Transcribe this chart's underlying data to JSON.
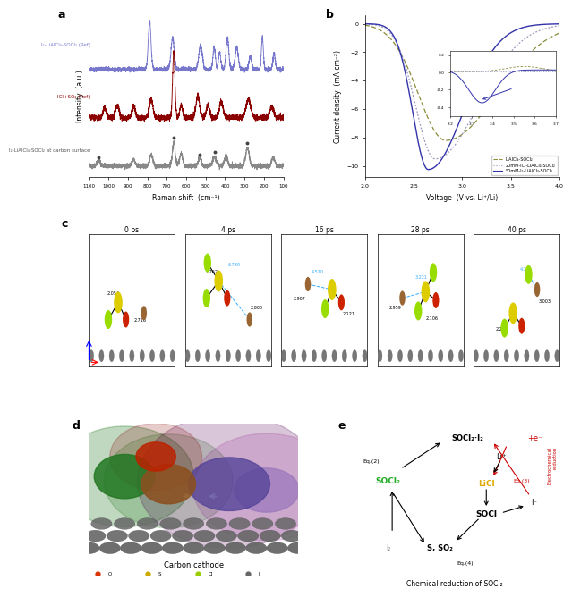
{
  "panel_a": {
    "ylabel": "Intensity  (a.u.)",
    "xlabel": "Raman shift  (cm⁻¹)",
    "line1_label": "I₂-LiAlCl₄-SOCl₂ (Ref)",
    "line1_color": "#7777cc",
    "line2_label": "ICl+SO₂ (Ref)",
    "line2_color": "#8b0000",
    "line3_label": "I₂-LiAlCl₄-SOCl₂ at carbon surface",
    "line3_color": "#888888"
  },
  "panel_b": {
    "ylabel": "Current density  (mA cm⁻²)",
    "xlabel": "Voltage  (V vs. Li⁺/Li)",
    "line1_label": "LiAlCl₄-SOCl₂",
    "line1_color": "#8b8b3a",
    "line2_label": "20mM-ICl-LiAlCl₄-SOCl₂",
    "line2_color": "#9999bb",
    "line3_label": "50mM-I₂-LiAlCl₄-SOCl₂",
    "line3_color": "#3333aa"
  },
  "panel_c": {
    "timepoints": [
      "0 ps",
      "4 ps",
      "16 ps",
      "28 ps",
      "40 ps"
    ]
  },
  "mol_colors": {
    "S": "#ddcc00",
    "O": "#cc2200",
    "Cl": "#99dd00",
    "Li": "#996633",
    "C": "#777777"
  }
}
